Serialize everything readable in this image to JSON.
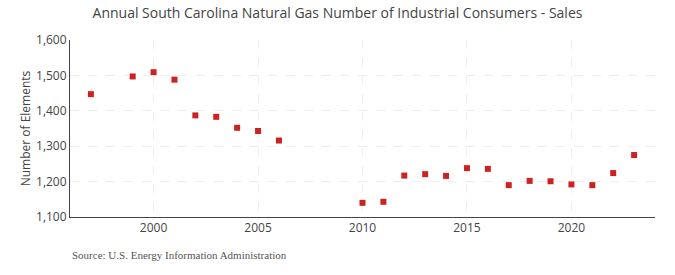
{
  "chart_data": {
    "type": "scatter",
    "title": "Annual South Carolina Natural Gas Number of Industrial Consumers - Sales",
    "ylabel": "Number of Elements",
    "annotations": [
      "Source: U.S. Energy Information Administration"
    ],
    "x": [
      1997,
      1999,
      2000,
      2001,
      2002,
      2003,
      2004,
      2005,
      2006,
      2010,
      2011,
      2012,
      2013,
      2014,
      2015,
      2016,
      2017,
      2018,
      2019,
      2020,
      2021,
      2022,
      2023
    ],
    "values": [
      1447,
      1497,
      1509,
      1488,
      1387,
      1383,
      1352,
      1343,
      1316,
      1140,
      1143,
      1217,
      1221,
      1216,
      1238,
      1236,
      1190,
      1202,
      1201,
      1192,
      1190,
      1224,
      1275
    ],
    "color": "#cc2222",
    "marker": "square",
    "xlim": [
      1996,
      2024
    ],
    "xticks": [
      2000,
      2005,
      2010,
      2015,
      2020
    ],
    "ylim": [
      1100,
      1600
    ],
    "yticks": [
      {
        "value": 1100,
        "label": "1,100"
      },
      {
        "value": 1200,
        "label": "1,200"
      },
      {
        "value": 1300,
        "label": "1,300"
      },
      {
        "value": 1400,
        "label": "1,400"
      },
      {
        "value": 1500,
        "label": "1,500"
      },
      {
        "value": 1600,
        "label": "1,600"
      }
    ],
    "grid": true
  }
}
